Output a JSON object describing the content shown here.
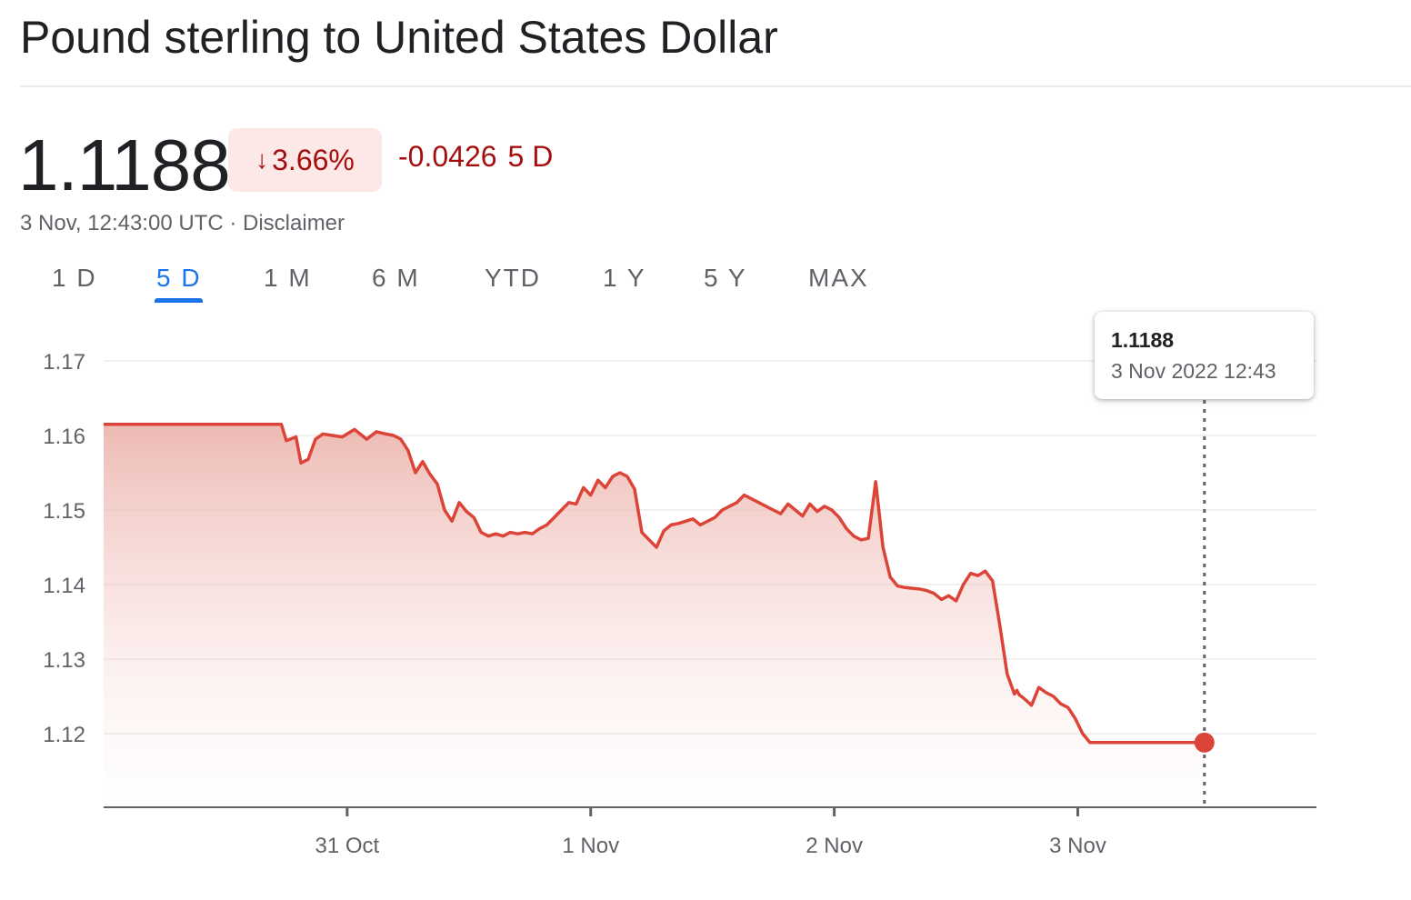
{
  "header": {
    "title": "Pound sterling to United States Dollar",
    "price": "1.1188",
    "change_percent": "3.66%",
    "change_arrow": "down-arrow-icon",
    "change_value": "-0.0426",
    "change_period": "5 D",
    "timestamp": "3 Nov, 12:43:00 UTC",
    "separator": "·",
    "disclaimer": "Disclaimer"
  },
  "range_tabs": {
    "items": [
      "1 D",
      "5 D",
      "1 M",
      "6 M",
      "YTD",
      "1 Y",
      "5 Y",
      "MAX"
    ],
    "active": "5 D"
  },
  "tooltip": {
    "value": "1.1188",
    "time": "3 Nov 2022 12:43"
  },
  "colors": {
    "negative": "#a50e0e",
    "line": "#db4437",
    "active_tab": "#1a73e8"
  },
  "chart_data": {
    "type": "area",
    "title": "",
    "xlabel": "",
    "ylabel": "",
    "y_ticks": [
      "1.12",
      "1.13",
      "1.14",
      "1.15",
      "1.16",
      "1.17"
    ],
    "x_ticks": [
      "31 Oct",
      "1 Nov",
      "2 Nov",
      "3 Nov"
    ],
    "x_tick_positions": [
      1,
      2,
      3,
      4
    ],
    "ylim": [
      1.11,
      1.175
    ],
    "xlim": [
      0,
      4.98
    ],
    "grid": true,
    "series": [
      {
        "name": "",
        "x": [
          0.0,
          0.73,
          0.75,
          0.79,
          0.81,
          0.84,
          0.87,
          0.9,
          0.94,
          0.98,
          1.03,
          1.08,
          1.12,
          1.16,
          1.19,
          1.22,
          1.25,
          1.28,
          1.31,
          1.34,
          1.37,
          1.4,
          1.43,
          1.46,
          1.49,
          1.52,
          1.55,
          1.58,
          1.61,
          1.64,
          1.67,
          1.7,
          1.73,
          1.76,
          1.79,
          1.82,
          1.85,
          1.88,
          1.91,
          1.94,
          1.97,
          2.0,
          2.03,
          2.06,
          2.09,
          2.12,
          2.15,
          2.18,
          2.21,
          2.24,
          2.27,
          2.3,
          2.33,
          2.36,
          2.39,
          2.42,
          2.45,
          2.48,
          2.51,
          2.54,
          2.57,
          2.6,
          2.63,
          2.66,
          2.69,
          2.72,
          2.75,
          2.78,
          2.81,
          2.84,
          2.87,
          2.9,
          2.93,
          2.96,
          2.99,
          3.02,
          3.05,
          3.08,
          3.11,
          3.14,
          3.17,
          3.2,
          3.23,
          3.26,
          3.29,
          3.32,
          3.35,
          3.38,
          3.41,
          3.44,
          3.47,
          3.5,
          3.53,
          3.56,
          3.59,
          3.62,
          3.65,
          3.68,
          3.71,
          3.74,
          3.75,
          3.76,
          3.78,
          3.81,
          3.84,
          3.87,
          3.9,
          3.93,
          3.96,
          3.99,
          4.02,
          4.05,
          4.08,
          4.11,
          4.14,
          4.17,
          4.2,
          4.23,
          4.26,
          4.29,
          4.32,
          4.35,
          4.38,
          4.41,
          4.44,
          4.47,
          4.5,
          4.52
        ],
        "values": [
          1.1615,
          1.1615,
          1.1593,
          1.1598,
          1.1563,
          1.1568,
          1.1595,
          1.1602,
          1.16,
          1.1598,
          1.1608,
          1.1595,
          1.1605,
          1.1602,
          1.16,
          1.1595,
          1.158,
          1.155,
          1.1565,
          1.1548,
          1.1535,
          1.15,
          1.1485,
          1.151,
          1.1498,
          1.149,
          1.147,
          1.1465,
          1.1468,
          1.1465,
          1.147,
          1.1468,
          1.147,
          1.1468,
          1.1475,
          1.148,
          1.149,
          1.15,
          1.151,
          1.1508,
          1.153,
          1.152,
          1.154,
          1.153,
          1.1545,
          1.155,
          1.1545,
          1.1528,
          1.147,
          1.146,
          1.145,
          1.1472,
          1.148,
          1.1482,
          1.1485,
          1.1488,
          1.148,
          1.1485,
          1.149,
          1.15,
          1.1505,
          1.151,
          1.152,
          1.1515,
          1.151,
          1.1505,
          1.15,
          1.1495,
          1.1508,
          1.15,
          1.1492,
          1.1508,
          1.1498,
          1.1505,
          1.15,
          1.149,
          1.1475,
          1.1465,
          1.146,
          1.1462,
          1.1538,
          1.145,
          1.141,
          1.1398,
          1.1396,
          1.1395,
          1.1394,
          1.1392,
          1.1388,
          1.138,
          1.1385,
          1.1378,
          1.14,
          1.1415,
          1.1412,
          1.1418,
          1.1405,
          1.1345,
          1.128,
          1.1253,
          1.1258,
          1.1252,
          1.1247,
          1.1238,
          1.1262,
          1.1255,
          1.125,
          1.124,
          1.1235,
          1.122,
          1.12,
          1.1188,
          1.1188,
          1.1188,
          1.1188,
          1.1188,
          1.1188,
          1.1188,
          1.1188,
          1.1188,
          1.1188,
          1.1188,
          1.1188,
          1.1188,
          1.1188,
          1.1188,
          1.1188,
          1.1188
        ]
      }
    ],
    "current_point": {
      "x": 4.52,
      "value": 1.1188
    }
  }
}
